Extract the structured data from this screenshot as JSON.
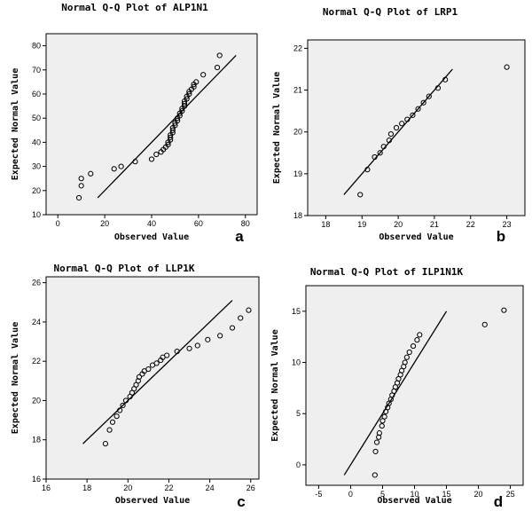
{
  "chart_data": [
    {
      "type": "scatter",
      "panel": "a",
      "title": "Normal Q-Q Plot of ALP1N1",
      "xlabel": "Observed Value",
      "ylabel": "Expected Normal Value",
      "xlim": [
        -5,
        85
      ],
      "ylim": [
        10,
        85
      ],
      "xticks": [
        0,
        20,
        40,
        60,
        80
      ],
      "yticks": [
        10,
        20,
        30,
        40,
        50,
        60,
        70,
        80
      ],
      "reference_line": [
        [
          17,
          17
        ],
        [
          76,
          76
        ]
      ],
      "points": [
        [
          9,
          17
        ],
        [
          10,
          22
        ],
        [
          10,
          25
        ],
        [
          14,
          27
        ],
        [
          24,
          29
        ],
        [
          27,
          30
        ],
        [
          33,
          32
        ],
        [
          40,
          33
        ],
        [
          42,
          35
        ],
        [
          44,
          36
        ],
        [
          45,
          37
        ],
        [
          46,
          38
        ],
        [
          47,
          39
        ],
        [
          47,
          40
        ],
        [
          48,
          41
        ],
        [
          48,
          42
        ],
        [
          48,
          43
        ],
        [
          49,
          44
        ],
        [
          49,
          45
        ],
        [
          49,
          46
        ],
        [
          50,
          47
        ],
        [
          50,
          48
        ],
        [
          51,
          49
        ],
        [
          51,
          50
        ],
        [
          52,
          51
        ],
        [
          52,
          52
        ],
        [
          53,
          53
        ],
        [
          53,
          54
        ],
        [
          54,
          55
        ],
        [
          54,
          56
        ],
        [
          54,
          57
        ],
        [
          55,
          58
        ],
        [
          55,
          59
        ],
        [
          56,
          60
        ],
        [
          56,
          61
        ],
        [
          57,
          62
        ],
        [
          58,
          63
        ],
        [
          58,
          64
        ],
        [
          59,
          65
        ],
        [
          62,
          68
        ],
        [
          68,
          71
        ],
        [
          69,
          76
        ]
      ]
    },
    {
      "type": "scatter",
      "panel": "b",
      "title": "Normal Q-Q Plot of LRP1",
      "xlabel": "Observed Value",
      "ylabel": "Expected Normal Value",
      "xlim": [
        17.5,
        23.5
      ],
      "ylim": [
        18,
        22.2
      ],
      "xticks": [
        18,
        19,
        20,
        21,
        22,
        23
      ],
      "yticks": [
        18,
        19,
        20,
        21,
        22
      ],
      "reference_line": [
        [
          18.5,
          18.5
        ],
        [
          21.5,
          21.5
        ]
      ],
      "points": [
        [
          18.95,
          18.5
        ],
        [
          19.15,
          19.1
        ],
        [
          19.35,
          19.4
        ],
        [
          19.5,
          19.5
        ],
        [
          19.6,
          19.65
        ],
        [
          19.75,
          19.8
        ],
        [
          19.8,
          19.95
        ],
        [
          19.95,
          20.1
        ],
        [
          20.1,
          20.2
        ],
        [
          20.25,
          20.3
        ],
        [
          20.4,
          20.4
        ],
        [
          20.55,
          20.55
        ],
        [
          20.7,
          20.7
        ],
        [
          20.85,
          20.85
        ],
        [
          21.1,
          21.05
        ],
        [
          21.3,
          21.25
        ],
        [
          23.0,
          21.55
        ]
      ]
    },
    {
      "type": "scatter",
      "panel": "c",
      "title": "Normal Q-Q Plot of LLP1K",
      "xlabel": "Observed Value",
      "ylabel": "Expected Normal Value",
      "xlim": [
        16,
        26.4
      ],
      "ylim": [
        16,
        26.3
      ],
      "xticks": [
        16,
        18,
        20,
        22,
        24,
        26
      ],
      "yticks": [
        16,
        18,
        20,
        22,
        24,
        26
      ],
      "reference_line": [
        [
          17.8,
          17.8
        ],
        [
          25.1,
          25.1
        ]
      ],
      "points": [
        [
          18.9,
          17.8
        ],
        [
          19.1,
          18.5
        ],
        [
          19.25,
          18.9
        ],
        [
          19.45,
          19.2
        ],
        [
          19.6,
          19.5
        ],
        [
          19.75,
          19.75
        ],
        [
          19.9,
          20.0
        ],
        [
          20.1,
          20.2
        ],
        [
          20.2,
          20.4
        ],
        [
          20.3,
          20.6
        ],
        [
          20.4,
          20.8
        ],
        [
          20.5,
          21.0
        ],
        [
          20.55,
          21.2
        ],
        [
          20.7,
          21.35
        ],
        [
          20.8,
          21.5
        ],
        [
          21.0,
          21.6
        ],
        [
          21.2,
          21.8
        ],
        [
          21.4,
          21.9
        ],
        [
          21.6,
          22.05
        ],
        [
          21.7,
          22.2
        ],
        [
          21.9,
          22.3
        ],
        [
          22.4,
          22.5
        ],
        [
          23.0,
          22.65
        ],
        [
          23.4,
          22.8
        ],
        [
          23.9,
          23.1
        ],
        [
          24.5,
          23.3
        ],
        [
          25.1,
          23.7
        ],
        [
          25.5,
          24.2
        ],
        [
          25.9,
          24.6
        ]
      ]
    },
    {
      "type": "scatter",
      "panel": "d",
      "title": "Normal Q-Q Plot of ILP1N1K",
      "xlabel": "Observed Value",
      "ylabel": "Expected Normal Value",
      "xlim": [
        -7,
        27
      ],
      "ylim": [
        -2,
        17.5
      ],
      "xticks": [
        -5,
        0,
        5,
        10,
        15,
        20,
        25
      ],
      "yticks": [
        0,
        5,
        10,
        15
      ],
      "reference_line": [
        [
          -1,
          -1
        ],
        [
          15,
          15
        ]
      ],
      "points": [
        [
          3.8,
          -1.0
        ],
        [
          3.9,
          1.3
        ],
        [
          4.1,
          2.2
        ],
        [
          4.4,
          2.7
        ],
        [
          4.5,
          3.1
        ],
        [
          4.9,
          3.8
        ],
        [
          5.0,
          4.3
        ],
        [
          5.3,
          4.7
        ],
        [
          5.5,
          5.2
        ],
        [
          5.8,
          5.6
        ],
        [
          6.0,
          6.0
        ],
        [
          6.3,
          6.4
        ],
        [
          6.5,
          6.8
        ],
        [
          6.8,
          7.2
        ],
        [
          7.0,
          7.6
        ],
        [
          7.3,
          8.0
        ],
        [
          7.5,
          8.4
        ],
        [
          7.8,
          8.8
        ],
        [
          8.0,
          9.2
        ],
        [
          8.3,
          9.6
        ],
        [
          8.5,
          10.0
        ],
        [
          8.8,
          10.5
        ],
        [
          9.2,
          11.0
        ],
        [
          9.8,
          11.6
        ],
        [
          10.4,
          12.2
        ],
        [
          10.8,
          12.7
        ],
        [
          21.0,
          13.7
        ],
        [
          24.0,
          15.1
        ]
      ]
    }
  ]
}
